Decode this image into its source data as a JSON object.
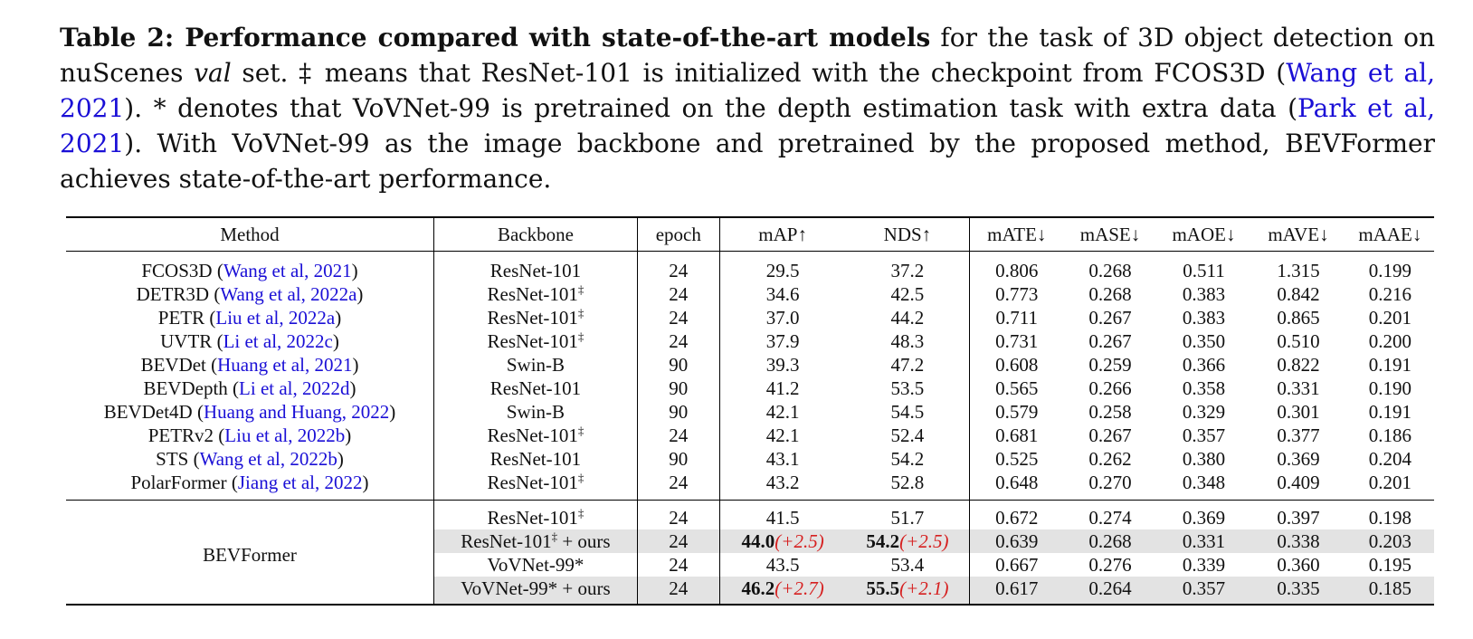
{
  "caption": {
    "label": "Table 2",
    "bold_title": "Performance compared with state-of-the-art models",
    "text1": " for the task of 3D object detection on nuScenes ",
    "italic_val": "val",
    "text2": " set. ‡ means that ResNet-101 is initialized with the checkpoint from FCOS3D (",
    "cite1": "Wang et al, 2021",
    "text3": "). * denotes that VoVNet-99 is pretrained on the depth estimation task with extra data (",
    "cite2": "Park et al, 2021",
    "text4": "). With VoVNet-99 as the image backbone and pretrained by the proposed method, BEVFormer achieves state-of-the-art performance."
  },
  "table": {
    "headers": [
      "Method",
      "Backbone",
      "epoch",
      "mAP↑",
      "NDS↑",
      "mATE↓",
      "mASE↓",
      "mAOE↓",
      "mAVE↓",
      "mAAE↓"
    ],
    "rows": [
      {
        "name": "FCOS3D",
        "cite": "Wang et al, 2021",
        "backbone": "ResNet-101",
        "dagger": "",
        "epoch": "24",
        "map": "29.5",
        "nds": "37.2",
        "mate": "0.806",
        "mase": "0.268",
        "maoe": "0.511",
        "mave": "1.315",
        "maae": "0.199"
      },
      {
        "name": "DETR3D",
        "cite": "Wang et al, 2022a",
        "backbone": "ResNet-101",
        "dagger": "‡",
        "epoch": "24",
        "map": "34.6",
        "nds": "42.5",
        "mate": "0.773",
        "mase": "0.268",
        "maoe": "0.383",
        "mave": "0.842",
        "maae": "0.216"
      },
      {
        "name": "PETR",
        "cite": "Liu et al, 2022a",
        "backbone": "ResNet-101",
        "dagger": "‡",
        "epoch": "24",
        "map": "37.0",
        "nds": "44.2",
        "mate": "0.711",
        "mase": "0.267",
        "maoe": "0.383",
        "mave": "0.865",
        "maae": "0.201"
      },
      {
        "name": "UVTR",
        "cite": "Li et al, 2022c",
        "backbone": "ResNet-101",
        "dagger": "‡",
        "epoch": "24",
        "map": "37.9",
        "nds": "48.3",
        "mate": "0.731",
        "mase": "0.267",
        "maoe": "0.350",
        "mave": "0.510",
        "maae": "0.200"
      },
      {
        "name": "BEVDet",
        "cite": "Huang et al, 2021",
        "backbone": "Swin-B",
        "dagger": "",
        "epoch": "90",
        "map": "39.3",
        "nds": "47.2",
        "mate": "0.608",
        "mase": "0.259",
        "maoe": "0.366",
        "mave": "0.822",
        "maae": "0.191"
      },
      {
        "name": "BEVDepth",
        "cite": "Li et al, 2022d",
        "backbone": "ResNet-101",
        "dagger": "",
        "epoch": "90",
        "map": "41.2",
        "nds": "53.5",
        "mate": "0.565",
        "mase": "0.266",
        "maoe": "0.358",
        "mave": "0.331",
        "maae": "0.190"
      },
      {
        "name": "BEVDet4D",
        "cite": "Huang and Huang, 2022",
        "backbone": "Swin-B",
        "dagger": "",
        "epoch": "90",
        "map": "42.1",
        "nds": "54.5",
        "mate": "0.579",
        "mase": "0.258",
        "maoe": "0.329",
        "mave": "0.301",
        "maae": "0.191"
      },
      {
        "name": "PETRv2",
        "cite": "Liu et al, 2022b",
        "backbone": "ResNet-101",
        "dagger": "‡",
        "epoch": "24",
        "map": "42.1",
        "nds": "52.4",
        "mate": "0.681",
        "mase": "0.267",
        "maoe": "0.357",
        "mave": "0.377",
        "maae": "0.186"
      },
      {
        "name": "STS",
        "cite": "Wang et al, 2022b",
        "backbone": "ResNet-101",
        "dagger": "",
        "epoch": "90",
        "map": "43.1",
        "nds": "54.2",
        "mate": "0.525",
        "mase": "0.262",
        "maoe": "0.380",
        "mave": "0.369",
        "maae": "0.204"
      },
      {
        "name": "PolarFormer",
        "cite": "Jiang et al, 2022",
        "backbone": "ResNet-101",
        "dagger": "‡",
        "epoch": "24",
        "map": "43.2",
        "nds": "52.8",
        "mate": "0.648",
        "mase": "0.270",
        "maoe": "0.348",
        "mave": "0.409",
        "maae": "0.201"
      }
    ],
    "bevformer": {
      "method": "BEVFormer",
      "rows": [
        {
          "backbone": "ResNet-101",
          "dagger": "‡",
          "suffix": "",
          "epoch": "24",
          "map": "41.5",
          "map_gain": "",
          "nds": "51.7",
          "nds_gain": "",
          "mate": "0.672",
          "mase": "0.274",
          "maoe": "0.369",
          "mave": "0.397",
          "maae": "0.198"
        },
        {
          "backbone": "ResNet-101",
          "dagger": "‡",
          "suffix": " + ours",
          "epoch": "24",
          "map": "44.0",
          "map_gain": "(+2.5)",
          "nds": "54.2",
          "nds_gain": "(+2.5)",
          "mate": "0.639",
          "mase": "0.268",
          "maoe": "0.331",
          "mave": "0.338",
          "maae": "0.203"
        },
        {
          "backbone": "VoVNet-99*",
          "dagger": "",
          "suffix": "",
          "epoch": "24",
          "map": "43.5",
          "map_gain": "",
          "nds": "53.4",
          "nds_gain": "",
          "mate": "0.667",
          "mase": "0.276",
          "maoe": "0.339",
          "mave": "0.360",
          "maae": "0.195"
        },
        {
          "backbone": "VoVNet-99*",
          "dagger": "",
          "suffix": " + ours",
          "epoch": "24",
          "map": "46.2",
          "map_gain": "(+2.7)",
          "nds": "55.5",
          "nds_gain": "(+2.1)",
          "mate": "0.617",
          "mase": "0.264",
          "maoe": "0.357",
          "mave": "0.335",
          "maae": "0.185"
        }
      ]
    }
  }
}
